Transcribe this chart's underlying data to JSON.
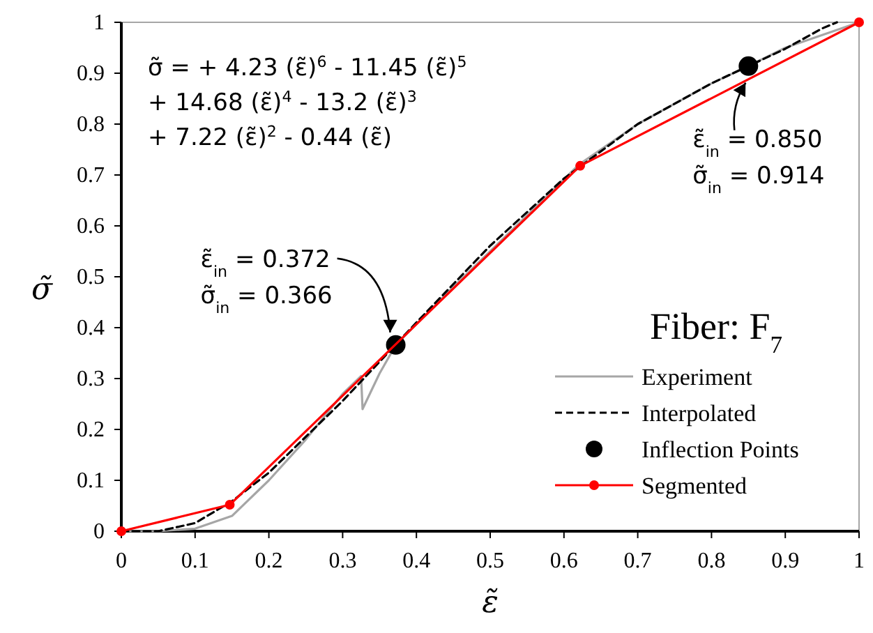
{
  "chart_data": {
    "type": "line",
    "xlabel": "ε̃",
    "ylabel": "σ̃",
    "legend_title": "Fiber: F$_{7}$",
    "legend": "bottom right",
    "grid": false,
    "xlim": [
      0,
      1
    ],
    "ylim": [
      0,
      1
    ],
    "xticks": [
      0,
      0.1,
      0.2,
      0.3,
      0.4,
      0.5,
      0.6,
      0.7,
      0.8,
      0.9,
      1
    ],
    "yticks": [
      0,
      0.1,
      0.2,
      0.3,
      0.4,
      0.5,
      0.6,
      0.7,
      0.8,
      0.9,
      1
    ],
    "series": [
      {
        "name": "Experiment",
        "type": "line",
        "color": "#a6a6a6",
        "line_style": "solid",
        "marker": "none",
        "x": [
          0,
          0.05,
          0.1,
          0.15,
          0.2,
          0.25,
          0.3,
          0.325,
          0.327,
          0.35,
          0.372,
          0.45,
          0.5,
          0.62,
          0.7,
          0.8,
          0.85,
          0.9,
          1
        ],
        "values": [
          0,
          0,
          0.005,
          0.03,
          0.1,
          0.18,
          0.27,
          0.305,
          0.24,
          0.31,
          0.366,
          0.48,
          0.55,
          0.72,
          0.8,
          0.88,
          0.914,
          0.95,
          1
        ]
      },
      {
        "name": "Interpolated",
        "type": "line",
        "color": "#000000",
        "line_style": "dashed",
        "marker": "none",
        "x": [
          0,
          0.05,
          0.1,
          0.15,
          0.2,
          0.3,
          0.4,
          0.5,
          0.6,
          0.7,
          0.8,
          0.9,
          0.95,
          0.97
        ],
        "values": [
          0,
          0,
          0.016,
          0.059,
          0.115,
          0.256,
          0.41,
          0.561,
          0.693,
          0.8,
          0.88,
          0.948,
          0.988,
          1
        ]
      },
      {
        "name": "Inflection Points",
        "type": "scatter",
        "color": "#000000",
        "marker": "circle",
        "x": [
          0.372,
          0.85
        ],
        "values": [
          0.366,
          0.914
        ]
      },
      {
        "name": "Segmented",
        "type": "line",
        "color": "#ff0000",
        "line_style": "solid",
        "marker": "circle",
        "x": [
          0,
          0.147,
          0.622,
          1
        ],
        "values": [
          0,
          0.052,
          0.718,
          1
        ]
      }
    ],
    "annotations": [
      "σ̃ = + 4.23 (ε̃)$^{6}$ - 11.45 (ε̃)$^{5}$\n+  14.68 (ε̃)$^{4}$ - 13.2 (ε̃)$^{3}$\n+ 7.22 (ε̃)$^{2}$ - 0.44 (ε̃)",
      {
        "text": "ε̃$_{in}$ = 0.372\nσ̃$_{in}$ = 0.366",
        "x": 0.372,
        "y": 0.366
      },
      {
        "text": "ε̃$_{in}$ = 0.850\nσ̃$_{in}$ = 0.914",
        "x": 0.85,
        "y": 0.914
      }
    ]
  }
}
